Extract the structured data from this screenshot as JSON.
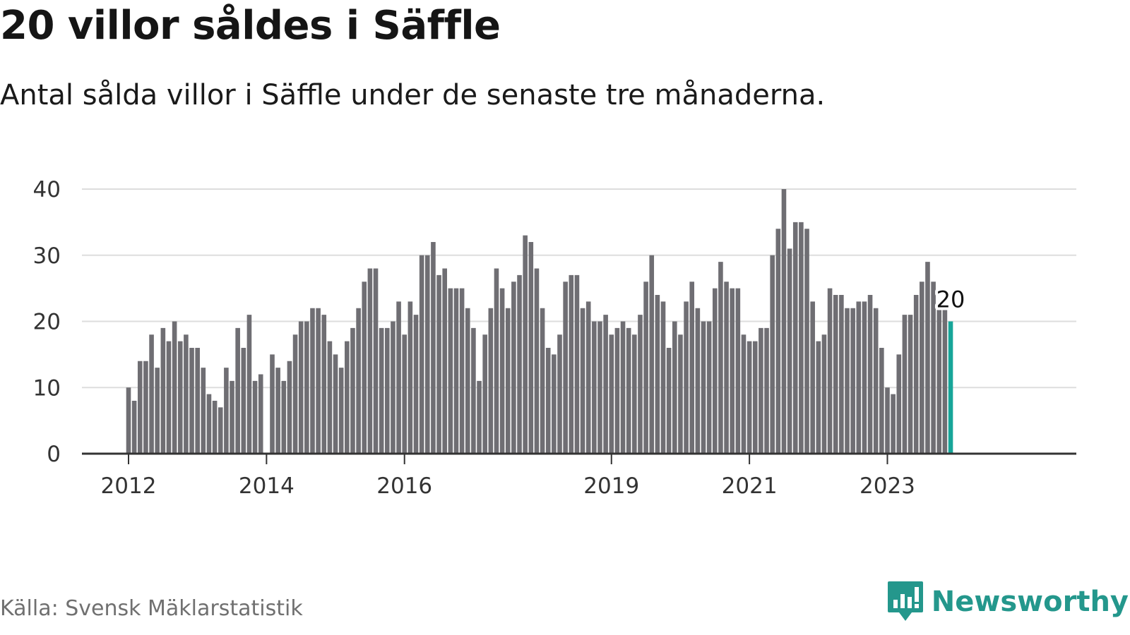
{
  "title": "20 villor såldes i Säffle",
  "subtitle": "Antal sålda villor i Säffle under de senaste tre månaderna.",
  "source": "Källa: Svensk Mäklarstatistik",
  "brand": {
    "name": "Newsworthy",
    "icon": "newsworthy-logo-icon",
    "color": "#24978c"
  },
  "chart_data": {
    "type": "bar",
    "title": "20 villor såldes i Säffle",
    "subtitle": "Antal sålda villor i Säffle under de senaste tre månaderna.",
    "xlabel": "",
    "ylabel": "",
    "ylim": [
      0,
      40
    ],
    "yticks": [
      0,
      10,
      20,
      30,
      40
    ],
    "grid": true,
    "x_start": "2012-01",
    "x_ticks": [
      {
        "label": "2012",
        "date": "2012-01"
      },
      {
        "label": "2014",
        "date": "2014-01"
      },
      {
        "label": "2016",
        "date": "2016-01"
      },
      {
        "label": "2019",
        "date": "2019-01"
      },
      {
        "label": "2021",
        "date": "2021-01"
      },
      {
        "label": "2023",
        "date": "2023-01"
      }
    ],
    "values": [
      10,
      8,
      14,
      14,
      18,
      13,
      19,
      17,
      20,
      17,
      18,
      16,
      16,
      13,
      9,
      8,
      7,
      13,
      11,
      19,
      16,
      21,
      11,
      12,
      null,
      15,
      13,
      11,
      14,
      18,
      20,
      20,
      22,
      22,
      21,
      17,
      15,
      13,
      17,
      19,
      22,
      26,
      28,
      28,
      19,
      19,
      20,
      23,
      18,
      23,
      21,
      30,
      30,
      32,
      27,
      28,
      25,
      25,
      25,
      22,
      19,
      11,
      18,
      22,
      28,
      25,
      22,
      26,
      27,
      33,
      32,
      28,
      22,
      16,
      15,
      18,
      26,
      27,
      27,
      22,
      23,
      20,
      20,
      21,
      18,
      19,
      20,
      19,
      18,
      21,
      26,
      30,
      24,
      23,
      16,
      20,
      18,
      23,
      26,
      22,
      20,
      20,
      25,
      29,
      26,
      25,
      25,
      18,
      17,
      17,
      19,
      19,
      30,
      34,
      40,
      31,
      35,
      35,
      34,
      23,
      17,
      18,
      25,
      24,
      24,
      22,
      22,
      23,
      23,
      24,
      22,
      16,
      10,
      9,
      15,
      21,
      21,
      24,
      26,
      29,
      26,
      22,
      22,
      20
    ],
    "highlight_last": {
      "value": 20,
      "label": "20"
    },
    "colors": {
      "bar": "#6f6e73",
      "highlight": "#17a599",
      "grid": "#dddddd",
      "axis": "#333333"
    }
  }
}
